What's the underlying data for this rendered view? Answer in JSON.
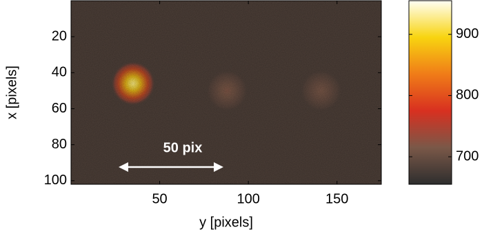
{
  "chart_data": {
    "type": "heatmap",
    "xlabel": "y [pixels]",
    "ylabel": "x [pixels]",
    "xlim": [
      0,
      175
    ],
    "xticks": [
      50,
      100,
      150
    ],
    "ylim": [
      0,
      102
    ],
    "yticks": [
      20,
      40,
      60,
      80,
      100
    ],
    "y_reversed": true,
    "clim": [
      655,
      955
    ],
    "cticks": [
      700,
      800,
      900
    ],
    "colormap": [
      "#2e2e2e",
      "#7a5848",
      "#d83020",
      "#f07c18",
      "#f8d410",
      "#fffff4"
    ],
    "background": 680,
    "spots": [
      {
        "x": 35,
        "y": 46,
        "peak": 925
      },
      {
        "x": 88,
        "y": 50,
        "peak": 718
      },
      {
        "x": 141,
        "y": 50,
        "peak": 714
      }
    ],
    "annotation": "50 pix"
  }
}
